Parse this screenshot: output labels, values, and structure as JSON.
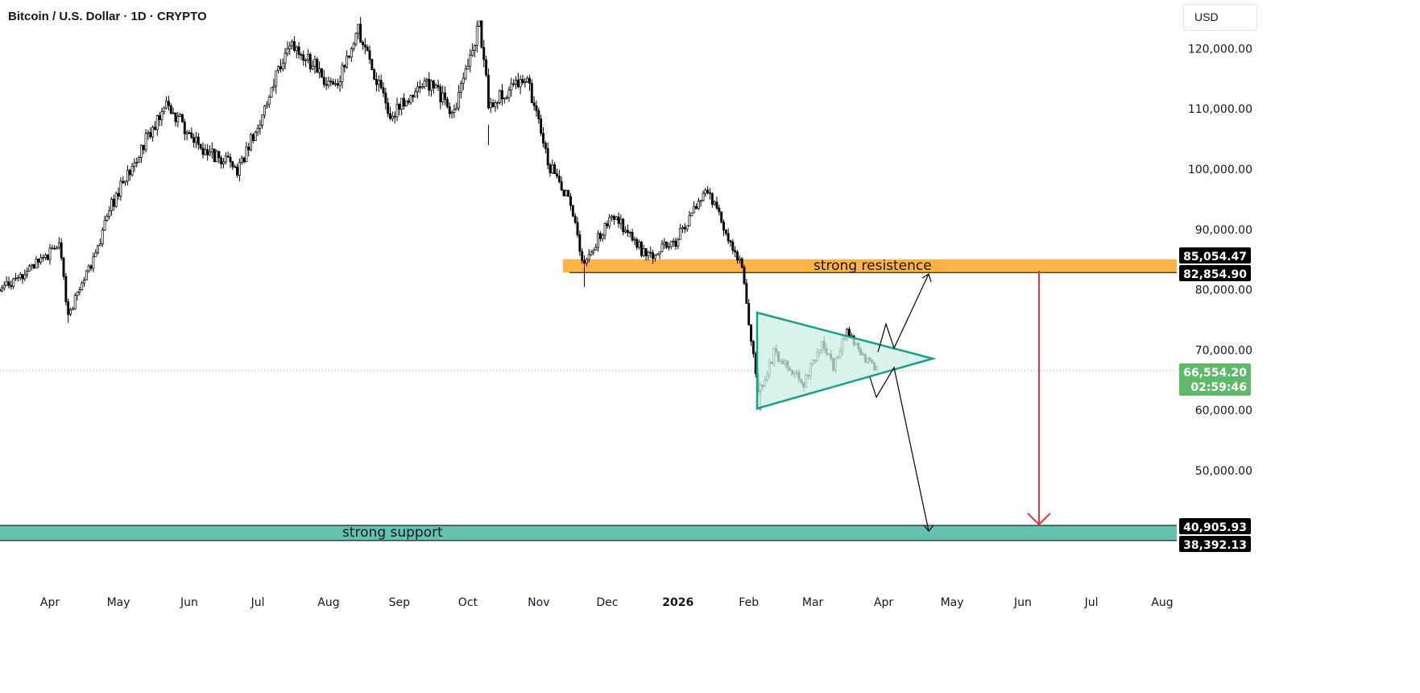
{
  "header": {
    "title": "Bitcoin / U.S. Dollar · 1D · CRYPTO",
    "currency": "USD"
  },
  "price_labels": {
    "resistance_top": "85,054.47",
    "resistance_bottom": "82,854.90",
    "current_price": "66,554.20",
    "countdown": "02:59:46",
    "support_top": "40,905.93",
    "support_bottom": "38,392.13"
  },
  "annotations": {
    "resistance_label": "strong resistence",
    "support_label": "strong support"
  },
  "colors": {
    "up_candle": "#ffffff",
    "down_candle": "#000000",
    "resistance_zone": "#ffb347",
    "support_zone": "#66c2b0",
    "triangle_fill": "#cdeee5",
    "triangle_stroke": "#16a085",
    "target_arrow": "#e8323c",
    "current_price_bg": "#5fb96b",
    "price_box_bg": "#000000"
  },
  "chart_data": {
    "type": "candlestick",
    "title": "Bitcoin / U.S. Dollar · 1D · CRYPTO",
    "ylabel": "USD",
    "y_ticks": [
      120000,
      110000,
      100000,
      90000,
      80000,
      70000,
      60000,
      50000
    ],
    "y_tick_labels": [
      "120,000.00",
      "110,000.00",
      "100,000.00",
      "90,000.00",
      "80,000.00",
      "70,000.00",
      "60,000.00",
      "50,000.00"
    ],
    "x_tick_labels": [
      "Apr",
      "May",
      "Jun",
      "Jul",
      "Aug",
      "Sep",
      "Oct",
      "Nov",
      "Dec",
      "2026",
      "Feb",
      "Mar",
      "Apr",
      "May",
      "Jun",
      "Jul",
      "Aug"
    ],
    "ylim": [
      29000,
      125000
    ],
    "grid": false,
    "price_path": [
      [
        "2025-03-10",
        80000
      ],
      [
        "2025-03-25",
        84000
      ],
      [
        "2025-04-05",
        87500
      ],
      [
        "2025-04-09",
        76000
      ],
      [
        "2025-04-20",
        85000
      ],
      [
        "2025-04-28",
        94000
      ],
      [
        "2025-05-10",
        103000
      ],
      [
        "2025-05-22",
        111000
      ],
      [
        "2025-06-05",
        104000
      ],
      [
        "2025-06-22",
        100000
      ],
      [
        "2025-07-01",
        107000
      ],
      [
        "2025-07-14",
        120500
      ],
      [
        "2025-07-25",
        117500
      ],
      [
        "2025-08-03",
        113000
      ],
      [
        "2025-08-14",
        123000
      ],
      [
        "2025-08-28",
        109000
      ],
      [
        "2025-09-12",
        115000
      ],
      [
        "2025-09-25",
        109500
      ],
      [
        "2025-10-06",
        124500
      ],
      [
        "2025-10-10",
        111000
      ],
      [
        "2025-10-27",
        115000
      ],
      [
        "2025-11-05",
        101000
      ],
      [
        "2025-11-14",
        95000
      ],
      [
        "2025-11-21",
        84000
      ],
      [
        "2025-12-03",
        93000
      ],
      [
        "2025-12-18",
        85500
      ],
      [
        "2025-12-31",
        88000
      ],
      [
        "2026-01-14",
        96500
      ],
      [
        "2026-01-29",
        84000
      ],
      [
        "2026-02-05",
        62500
      ],
      [
        "2026-02-12",
        69500
      ],
      [
        "2026-02-25",
        64500
      ],
      [
        "2026-03-05",
        71500
      ],
      [
        "2026-03-10",
        67000
      ],
      [
        "2026-03-16",
        73500
      ],
      [
        "2026-03-22",
        69500
      ],
      [
        "2026-03-29",
        66554
      ]
    ],
    "last_price": 66554.2,
    "resistance_zone": [
      82854.9,
      85054.47
    ],
    "support_zone": [
      38392.13,
      40905.93
    ]
  }
}
